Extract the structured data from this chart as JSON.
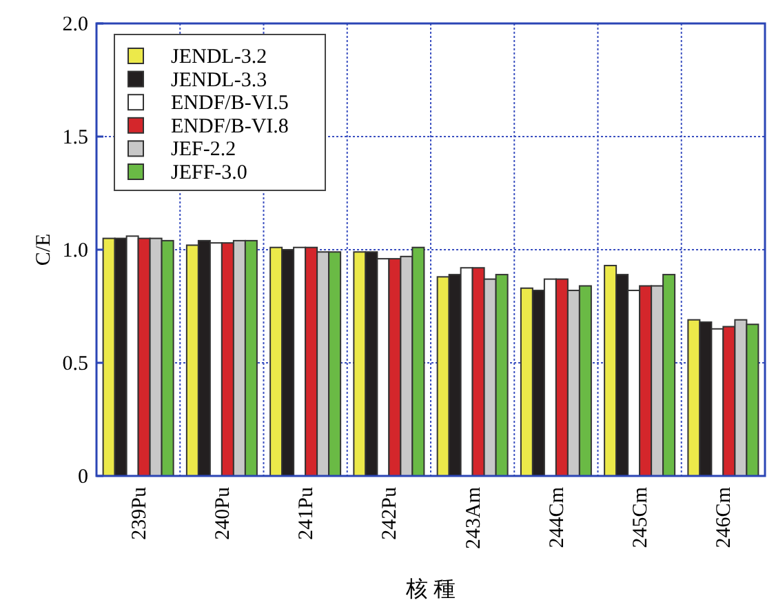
{
  "chart_data": {
    "type": "bar",
    "xlabel": "核 種",
    "ylabel": "C/E",
    "categories": [
      "239Pu",
      "240Pu",
      "241Pu",
      "242Pu",
      "243Am",
      "244Cm",
      "245Cm",
      "246Cm"
    ],
    "series": [
      {
        "name": "JENDL-3.2",
        "color": "#ece94a",
        "values": [
          1.05,
          1.02,
          1.01,
          0.99,
          0.88,
          0.83,
          0.93,
          0.69
        ]
      },
      {
        "name": "JENDL-3.3",
        "color": "#231f20",
        "values": [
          1.05,
          1.04,
          1.0,
          0.99,
          0.89,
          0.82,
          0.89,
          0.68
        ]
      },
      {
        "name": "ENDF/B-VI.5",
        "color": "#ffffff",
        "values": [
          1.06,
          1.03,
          1.01,
          0.96,
          0.92,
          0.87,
          0.82,
          0.65
        ]
      },
      {
        "name": "ENDF/B-VI.8",
        "color": "#d4262b",
        "values": [
          1.05,
          1.03,
          1.01,
          0.96,
          0.92,
          0.87,
          0.84,
          0.66
        ]
      },
      {
        "name": "JEF-2.2",
        "color": "#c8c8c8",
        "values": [
          1.05,
          1.04,
          0.99,
          0.97,
          0.87,
          0.82,
          0.84,
          0.69
        ]
      },
      {
        "name": "JEFF-3.0",
        "color": "#6aba45",
        "values": [
          1.04,
          1.04,
          0.99,
          1.01,
          0.89,
          0.84,
          0.89,
          0.67
        ]
      }
    ],
    "ylim": [
      0,
      2.0
    ],
    "yticks": [
      {
        "value": 0,
        "label": "0"
      },
      {
        "value": 0.5,
        "label": "0.5"
      },
      {
        "value": 1.0,
        "label": "1.0"
      },
      {
        "value": 1.5,
        "label": "1.5"
      },
      {
        "value": 2.0,
        "label": "2.0"
      }
    ],
    "grid": true,
    "legend": "top left"
  }
}
